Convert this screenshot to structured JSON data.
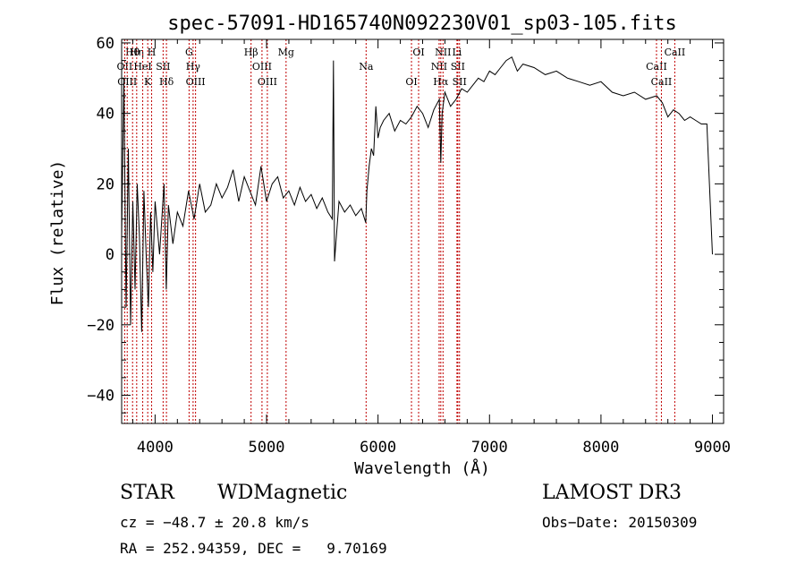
{
  "chart_data": {
    "type": "line",
    "title": "spec-57091-HD165740N092230V01_sp03-105.fits",
    "xlabel": "Wavelength (Å)",
    "ylabel": "Flux (relative)",
    "xlim": [
      3700,
      9100
    ],
    "ylim": [
      -48,
      61
    ],
    "x_ticks": [
      4000,
      5000,
      6000,
      7000,
      8000,
      9000
    ],
    "y_ticks": [
      -40,
      -20,
      0,
      20,
      40,
      60
    ],
    "x_tick_labels": [
      "4000",
      "5000",
      "6000",
      "7000",
      "8000",
      "9000"
    ],
    "y_tick_labels": [
      "−40",
      "−20",
      "0",
      "20",
      "40",
      "60"
    ],
    "grid": false,
    "series": [
      {
        "name": "spectrum",
        "x": [
          3700,
          3720,
          3740,
          3760,
          3780,
          3800,
          3820,
          3840,
          3860,
          3880,
          3900,
          3920,
          3940,
          3960,
          3980,
          4000,
          4040,
          4080,
          4100,
          4120,
          4160,
          4200,
          4250,
          4300,
          4350,
          4400,
          4450,
          4500,
          4550,
          4600,
          4650,
          4700,
          4750,
          4800,
          4850,
          4900,
          4950,
          5000,
          5050,
          5100,
          5150,
          5200,
          5250,
          5300,
          5350,
          5400,
          5450,
          5500,
          5550,
          5590,
          5600,
          5610,
          5650,
          5700,
          5750,
          5800,
          5850,
          5890,
          5900,
          5920,
          5940,
          5960,
          5980,
          6000,
          6020,
          6050,
          6100,
          6150,
          6200,
          6250,
          6300,
          6350,
          6400,
          6450,
          6500,
          6550,
          6563,
          6575,
          6600,
          6650,
          6700,
          6750,
          6800,
          6850,
          6900,
          6950,
          7000,
          7050,
          7100,
          7150,
          7200,
          7250,
          7300,
          7400,
          7500,
          7600,
          7700,
          7800,
          7900,
          8000,
          8100,
          8200,
          8300,
          8400,
          8500,
          8550,
          8600,
          8650,
          8700,
          8750,
          8800,
          8850,
          8900,
          8950,
          9000
        ],
        "y": [
          5,
          50,
          -15,
          30,
          -20,
          15,
          -10,
          20,
          5,
          -22,
          18,
          0,
          -15,
          12,
          -5,
          15,
          0,
          20,
          -10,
          14,
          3,
          12,
          8,
          18,
          10,
          20,
          12,
          14,
          20,
          16,
          19,
          24,
          15,
          22,
          18,
          14,
          25,
          15,
          20,
          22,
          16,
          18,
          14,
          19,
          15,
          17,
          13,
          16,
          12,
          10,
          55,
          -2,
          15,
          12,
          14,
          11,
          13,
          9,
          18,
          25,
          30,
          28,
          42,
          33,
          36,
          38,
          40,
          35,
          38,
          37,
          39,
          42,
          40,
          36,
          41,
          44,
          26,
          40,
          46,
          42,
          44,
          47,
          46,
          48,
          50,
          49,
          52,
          51,
          53,
          55,
          56,
          52,
          54,
          53,
          51,
          52,
          50,
          49,
          48,
          49,
          46,
          45,
          46,
          44,
          45,
          43,
          39,
          41,
          40,
          38,
          39,
          38,
          37,
          37,
          0
        ],
        "color": "#000000"
      }
    ],
    "line_markers": [
      {
        "label": "Hθ",
        "wavelength": 3798
      },
      {
        "label": "OII",
        "wavelength": 3727
      },
      {
        "label": "OIII",
        "wavelength": 3750
      },
      {
        "label": "Hη",
        "wavelength": 3835
      },
      {
        "label": "HeI",
        "wavelength": 3889
      },
      {
        "label": "K",
        "wavelength": 3934
      },
      {
        "label": "H",
        "wavelength": 3969
      },
      {
        "label": "SII",
        "wavelength": 4072
      },
      {
        "label": "Hδ",
        "wavelength": 4102
      },
      {
        "label": "G",
        "wavelength": 4305
      },
      {
        "label": "Hγ",
        "wavelength": 4341
      },
      {
        "label": "OIII",
        "wavelength": 4363
      },
      {
        "label": "Hβ",
        "wavelength": 4861
      },
      {
        "label": "OIII",
        "wavelength": 4959
      },
      {
        "label": "OIII",
        "wavelength": 5007
      },
      {
        "label": "Mg",
        "wavelength": 5175
      },
      {
        "label": "Na",
        "wavelength": 5893
      },
      {
        "label": "OI",
        "wavelength": 6300
      },
      {
        "label": "OI",
        "wavelength": 6364
      },
      {
        "label": "NII",
        "wavelength": 6548
      },
      {
        "label": "Hα",
        "wavelength": 6563
      },
      {
        "label": "NII",
        "wavelength": 6583
      },
      {
        "label": "SII",
        "wavelength": 6716
      },
      {
        "label": "SII",
        "wavelength": 6731
      },
      {
        "label": "Li",
        "wavelength": 6708
      },
      {
        "label": "CaII",
        "wavelength": 8498
      },
      {
        "label": "CaII",
        "wavelength": 8542
      },
      {
        "label": "CaII",
        "wavelength": 8662
      }
    ],
    "marker_color": "#c00000"
  },
  "info": {
    "class_label": "STAR",
    "subclass": "WDMagnetic",
    "survey": "LAMOST DR3",
    "cz": "cz = −48.7 ± 20.8 km/s",
    "obs_date": "Obs−Date: 20150309",
    "coords": "RA = 252.94359, DEC =   9.70169"
  }
}
